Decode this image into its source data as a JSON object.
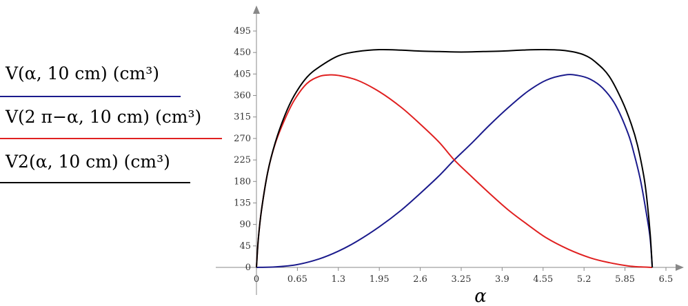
{
  "chart_data": {
    "type": "line",
    "xlabel": "α",
    "ylabel": "",
    "xlim": [
      0,
      6.5
    ],
    "ylim": [
      0,
      495
    ],
    "x_ticks": [
      "0",
      "0.65",
      "1.3",
      "1.95",
      "2.6",
      "3.25",
      "3.9",
      "4.55",
      "5.2",
      "5.85",
      "6.5"
    ],
    "y_ticks": [
      "0",
      "45",
      "90",
      "135",
      "180",
      "225",
      "270",
      "315",
      "360",
      "405",
      "450",
      "495"
    ],
    "legend_position": "left",
    "series": [
      {
        "name": "V(α, 10 cm) (cm³)",
        "color": "#1a1a8c",
        "x": [
          0,
          0.3,
          0.65,
          1.0,
          1.3,
          1.6,
          1.95,
          2.3,
          2.6,
          2.9,
          3.14,
          3.4,
          3.7,
          4.0,
          4.3,
          4.6,
          4.9,
          5.1,
          5.3,
          5.5,
          5.7,
          5.9,
          6.0,
          6.1,
          6.2,
          6.25,
          6.283
        ],
        "y": [
          0,
          1,
          6,
          18,
          34,
          55,
          85,
          120,
          155,
          192,
          225,
          258,
          298,
          335,
          368,
          392,
          403,
          402,
          394,
          375,
          340,
          280,
          235,
          180,
          105,
          60,
          0
        ]
      },
      {
        "name": "V(2 π−α, 10 cm) (cm³)",
        "color": "#e02020",
        "x": [
          0,
          0.03,
          0.08,
          0.18,
          0.3,
          0.45,
          0.6,
          0.8,
          1.0,
          1.15,
          1.3,
          1.6,
          1.95,
          2.3,
          2.6,
          2.9,
          3.14,
          3.4,
          3.7,
          4.0,
          4.3,
          4.6,
          4.95,
          5.3,
          5.6,
          5.9,
          6.1,
          6.283
        ],
        "y": [
          0,
          60,
          120,
          200,
          260,
          310,
          350,
          385,
          400,
          403,
          402,
          392,
          368,
          335,
          300,
          262,
          225,
          192,
          155,
          120,
          90,
          62,
          38,
          20,
          10,
          3,
          1,
          0
        ]
      },
      {
        "name": "V2(α, 10 cm) (cm³)",
        "color": "#000000",
        "x": [
          0,
          0.03,
          0.08,
          0.18,
          0.3,
          0.45,
          0.6,
          0.8,
          1.0,
          1.3,
          1.6,
          1.95,
          2.3,
          2.6,
          2.9,
          3.25,
          3.6,
          3.9,
          4.2,
          4.55,
          4.9,
          5.2,
          5.4,
          5.6,
          5.8,
          5.95,
          6.05,
          6.15,
          6.2,
          6.25,
          6.283
        ],
        "y": [
          0,
          60,
          120,
          200,
          262,
          318,
          360,
          398,
          420,
          443,
          452,
          456,
          455,
          453,
          452,
          451,
          452,
          453,
          455,
          456,
          454,
          445,
          428,
          400,
          350,
          300,
          255,
          190,
          140,
          70,
          0
        ]
      }
    ]
  }
}
